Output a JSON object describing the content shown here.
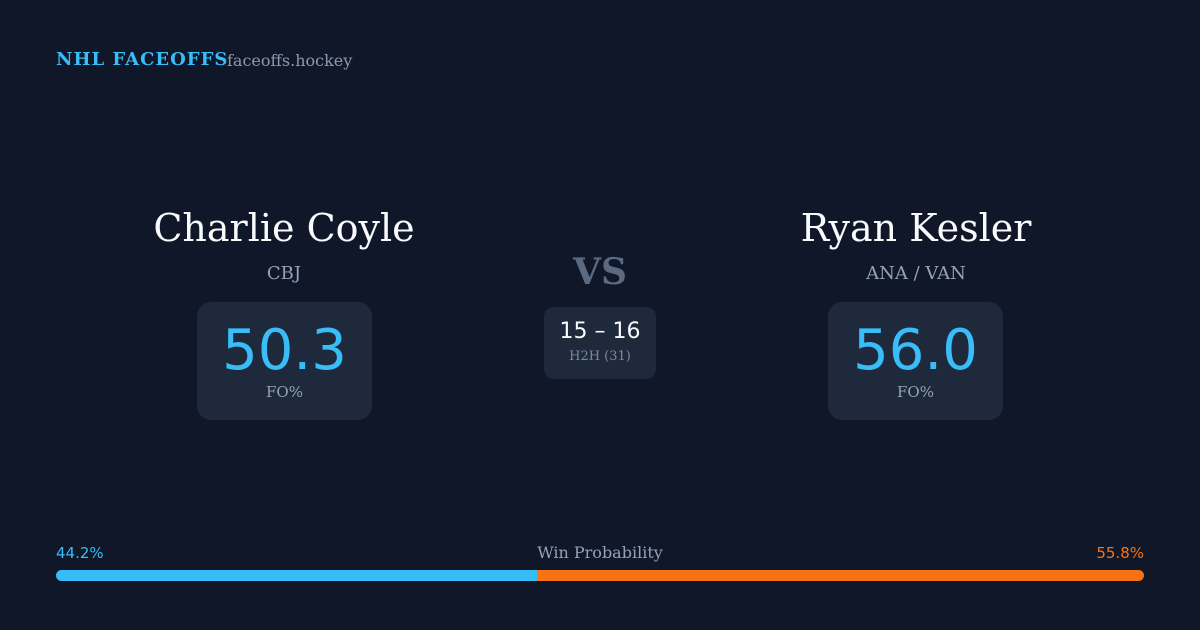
{
  "header": {
    "brand": "NHL FACEOFFS",
    "site": "faceoffs.hockey"
  },
  "players": [
    {
      "name": "Charlie Coyle",
      "team": "CBJ",
      "fo_value": "50.3",
      "fo_label": "FO%"
    },
    {
      "name": "Ryan Kesler",
      "team": "ANA / VAN",
      "fo_value": "56.0",
      "fo_label": "FO%"
    }
  ],
  "versus": "VS",
  "h2h": {
    "score": "15 – 16",
    "label": "H2H (31)"
  },
  "win_probability": {
    "label": "Win Probability",
    "values": [
      44.2,
      55.8
    ],
    "value_labels": [
      "44.2%",
      "55.8%"
    ]
  }
}
